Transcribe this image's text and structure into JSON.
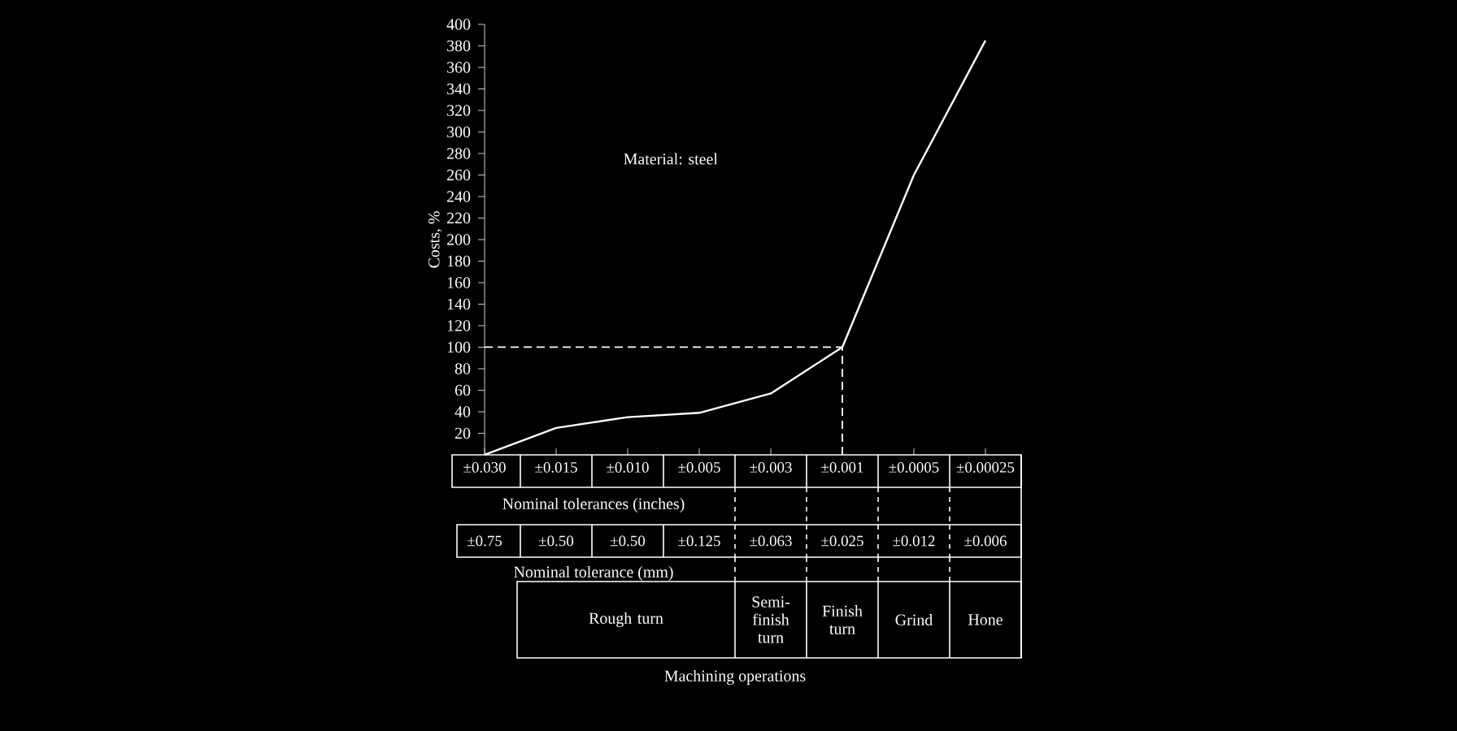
{
  "chart_data": {
    "type": "line",
    "ylabel": "Costs, %",
    "xlabel": "Nominal tolerances (inches)",
    "categories": [
      "±0.030",
      "±0.015",
      "±0.010",
      "±0.005",
      "±0.003",
      "±0.001",
      "±0.0005",
      "±0.00025"
    ],
    "series": [
      {
        "color": "#ffffff",
        "values": [
          0,
          25,
          35,
          39,
          57,
          100,
          260,
          385
        ]
      }
    ],
    "ylim": [
      0,
      400
    ],
    "yticks": [
      20,
      40,
      60,
      80,
      100,
      120,
      140,
      160,
      180,
      200,
      220,
      240,
      260,
      280,
      300,
      320,
      340,
      360,
      380,
      400
    ],
    "ref_lines": [
      {
        "axis": "y",
        "value": 100,
        "line_style": "dashed",
        "color": "#ffffff"
      },
      {
        "axis": "x",
        "value": "±0.001",
        "line_style": "dashed",
        "color": "#ffffff"
      }
    ],
    "annotations": [
      "Material: steel",
      "±0.75",
      "±0.50",
      "±0.50",
      "±0.125",
      "±0.063",
      "±0.025",
      "±0.012",
      "±0.006",
      "Nominal tolerance (mm)",
      "Rough turn",
      "Semi-finish turn",
      "Finish turn",
      "Grind",
      "Hone",
      "Machining operations"
    ]
  }
}
